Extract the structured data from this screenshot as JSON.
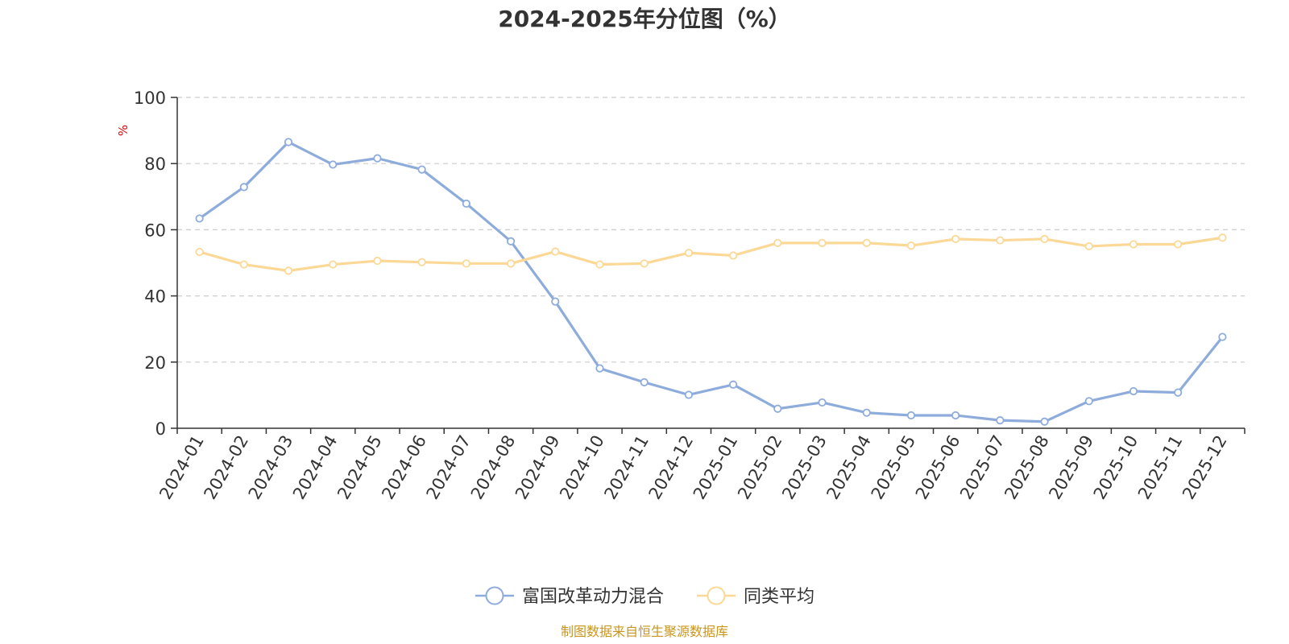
{
  "chart_data": {
    "type": "line",
    "title": "2024-2025年分位图（%）",
    "ylabel": "%",
    "xlabel": "",
    "ylim": [
      0,
      100
    ],
    "yticks": [
      "0",
      "20",
      "40",
      "60",
      "80",
      "100"
    ],
    "grid": true,
    "legend_position": "bottom-center",
    "categories": [
      "2024-01",
      "2024-02",
      "2024-03",
      "2024-04",
      "2024-05",
      "2024-06",
      "2024-07",
      "2024-08",
      "2024-09",
      "2024-10",
      "2024-11",
      "2024-12",
      "2025-01",
      "2025-02",
      "2025-03",
      "2025-04",
      "2025-05",
      "2025-06",
      "2025-07",
      "2025-08",
      "2025-09",
      "2025-10",
      "2025-11",
      "2025-12"
    ],
    "series": [
      {
        "name": "富国改革动力混合",
        "color": "#8eacdb",
        "values": [
          63.4,
          72.9,
          86.5,
          79.7,
          81.6,
          78.2,
          67.9,
          56.5,
          38.3,
          18.1,
          13.9,
          10.1,
          13.2,
          5.9,
          7.8,
          4.7,
          3.9,
          3.9,
          2.4,
          2.0,
          8.2,
          11.2,
          10.8,
          27.6
        ]
      },
      {
        "name": "同类平均",
        "color": "#fcd896",
        "values": [
          53.3,
          49.5,
          47.6,
          49.5,
          50.6,
          50.2,
          49.8,
          49.8,
          53.4,
          49.5,
          49.8,
          53.0,
          52.2,
          56.0,
          56.0,
          56.0,
          55.2,
          57.2,
          56.8,
          57.2,
          55.0,
          55.6,
          55.6,
          57.6
        ]
      }
    ]
  },
  "source": "制图数据来自恒生聚源数据库"
}
